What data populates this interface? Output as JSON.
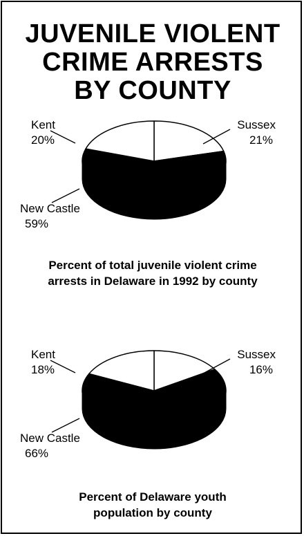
{
  "title": {
    "lines": [
      "JUVENILE VIOLENT",
      "CRIME ARRESTS",
      "BY COUNTY"
    ]
  },
  "colors": {
    "sussex": "#ffffff",
    "kent": "#ffffff",
    "new_castle": "#000000",
    "side_light": "#8a8a8a",
    "outline": "#000000"
  },
  "chart_data": [
    {
      "type": "pie",
      "title": "Percent of total juvenile violent crime arrests in Delaware in 1992 by county",
      "caption_lines": [
        "Percent of total juvenile violent crime",
        "arrests in Delaware in 1992 by county"
      ],
      "slices": [
        {
          "name": "Sussex",
          "value": 21,
          "label": "21%"
        },
        {
          "name": "New Castle",
          "value": 59,
          "label": "59%"
        },
        {
          "name": "Kent",
          "value": 20,
          "label": "20%"
        }
      ]
    },
    {
      "type": "pie",
      "title": "Percent of Delaware youth population by county",
      "caption_lines": [
        "Percent of Delaware youth",
        "population by county"
      ],
      "slices": [
        {
          "name": "Sussex",
          "value": 16,
          "label": "16%"
        },
        {
          "name": "New Castle",
          "value": 66,
          "label": "66%"
        },
        {
          "name": "Kent",
          "value": 18,
          "label": "18%"
        }
      ]
    }
  ]
}
